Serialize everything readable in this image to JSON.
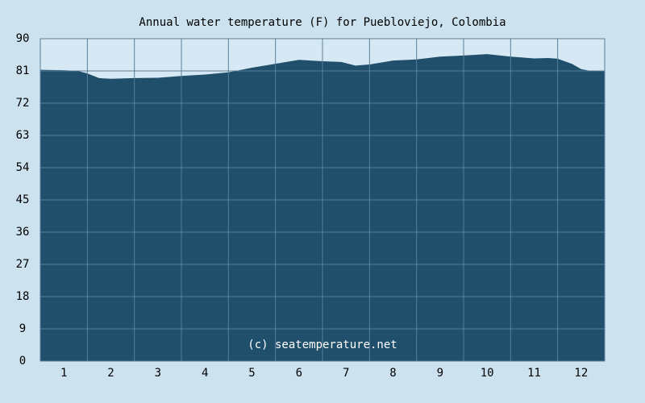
{
  "chart_data": {
    "type": "area",
    "title": "Annual water temperature (F) for Puebloviejo, Colombia",
    "watermark": "(c) seatemperature.net",
    "x": [
      0.5,
      1.0,
      1.3,
      1.5,
      1.75,
      2.0,
      2.5,
      3.0,
      3.5,
      4.0,
      4.5,
      5.0,
      5.5,
      6.0,
      6.5,
      6.9,
      7.2,
      7.5,
      8.0,
      8.5,
      9.0,
      9.5,
      10.0,
      10.5,
      11.0,
      11.3,
      11.5,
      11.8,
      12.0,
      12.2,
      12.5
    ],
    "values": [
      81.3,
      81.2,
      81.0,
      80.3,
      79.0,
      78.8,
      79.0,
      79.1,
      79.6,
      80.0,
      80.6,
      81.9,
      83.0,
      84.1,
      83.7,
      83.5,
      82.5,
      82.8,
      83.9,
      84.2,
      85.0,
      85.3,
      85.7,
      85.0,
      84.5,
      84.6,
      84.4,
      83.0,
      81.5,
      81.0,
      81.0
    ],
    "color": "#1f4f6b",
    "xlim": [
      0.5,
      12.5
    ],
    "xticks": [
      1,
      2,
      3,
      4,
      5,
      6,
      7,
      8,
      9,
      10,
      11,
      12
    ],
    "ylim": [
      0,
      90
    ],
    "yticks": [
      0,
      9,
      18,
      27,
      36,
      45,
      54,
      63,
      72,
      81,
      90
    ],
    "grid": true
  }
}
